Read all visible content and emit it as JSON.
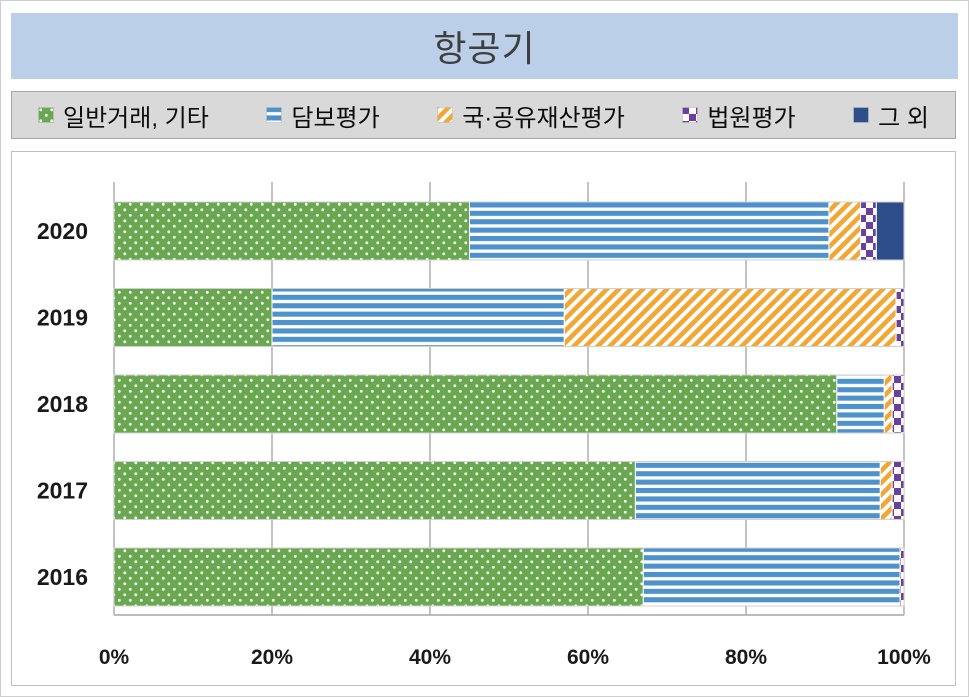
{
  "title": "항공기",
  "legend": [
    {
      "label": "일반거래, 기타",
      "pattern": "green-dots",
      "color": "#69a750"
    },
    {
      "label": "담보평가",
      "pattern": "blue-hstripes",
      "color": "#4e92cc"
    },
    {
      "label": "국·공유재산평가",
      "pattern": "yellow-diag",
      "color": "#f2a735"
    },
    {
      "label": "법원평가",
      "pattern": "purple-checker",
      "color": "#6b3fa0"
    },
    {
      "label": "그 외",
      "pattern": "navy-solid",
      "color": "#2e4d8b"
    }
  ],
  "chart_data": {
    "type": "bar",
    "orientation": "horizontal",
    "stacked": true,
    "title": "항공기",
    "categories": [
      "2020",
      "2019",
      "2018",
      "2017",
      "2016"
    ],
    "series": [
      {
        "name": "일반거래, 기타",
        "values": [
          45.0,
          20.0,
          91.5,
          66.0,
          67.0
        ]
      },
      {
        "name": "담보평가",
        "values": [
          45.5,
          37.0,
          6.0,
          31.0,
          32.5
        ]
      },
      {
        "name": "국·공유재산평가",
        "values": [
          4.0,
          42.0,
          1.0,
          1.5,
          0.0
        ]
      },
      {
        "name": "법원평가",
        "values": [
          2.0,
          1.0,
          1.5,
          1.5,
          0.5
        ]
      },
      {
        "name": "그 외",
        "values": [
          3.5,
          0.0,
          0.0,
          0.0,
          0.0
        ]
      }
    ],
    "xlim": [
      0,
      100
    ],
    "xlabel_ticks": [
      "0%",
      "20%",
      "40%",
      "60%",
      "80%",
      "100%"
    ],
    "grid": true,
    "legend_position": "top"
  }
}
